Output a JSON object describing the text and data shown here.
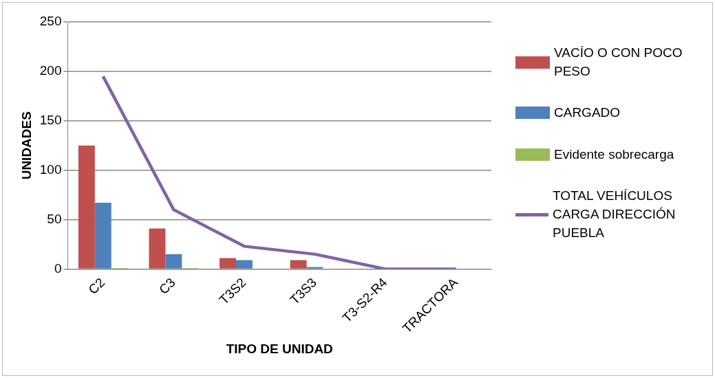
{
  "chart_data": {
    "type": "bar",
    "xlabel": "TIPO DE UNIDAD",
    "ylabel": "UNIDADES",
    "categories": [
      "C2",
      "C3",
      "T3S2",
      "T3S3",
      "T3-S2-R4",
      "TRACTORA"
    ],
    "series": [
      {
        "name": "VACÍO O CON POCO PESO",
        "color": "#c0504d",
        "values": [
          125,
          41,
          11,
          9,
          0,
          0
        ]
      },
      {
        "name": "CARGADO",
        "color": "#4f81bd",
        "values": [
          67,
          15,
          9,
          2,
          0,
          0
        ]
      },
      {
        "name": "Evidente sobrecarga",
        "color": "#9bbb59",
        "values": [
          1,
          1,
          0,
          0,
          0,
          0
        ]
      },
      {
        "name": "TOTAL VEHÍCULOS CARGA DIRECCIÓN PUEBLA",
        "color": "#8064a2",
        "type": "line",
        "values": [
          195,
          60,
          23,
          15,
          0,
          0
        ]
      }
    ],
    "ylim": [
      0,
      250
    ],
    "yticks": [
      0,
      50,
      100,
      150,
      200,
      250
    ],
    "grid": "y",
    "legend": "right",
    "marker": "none"
  }
}
